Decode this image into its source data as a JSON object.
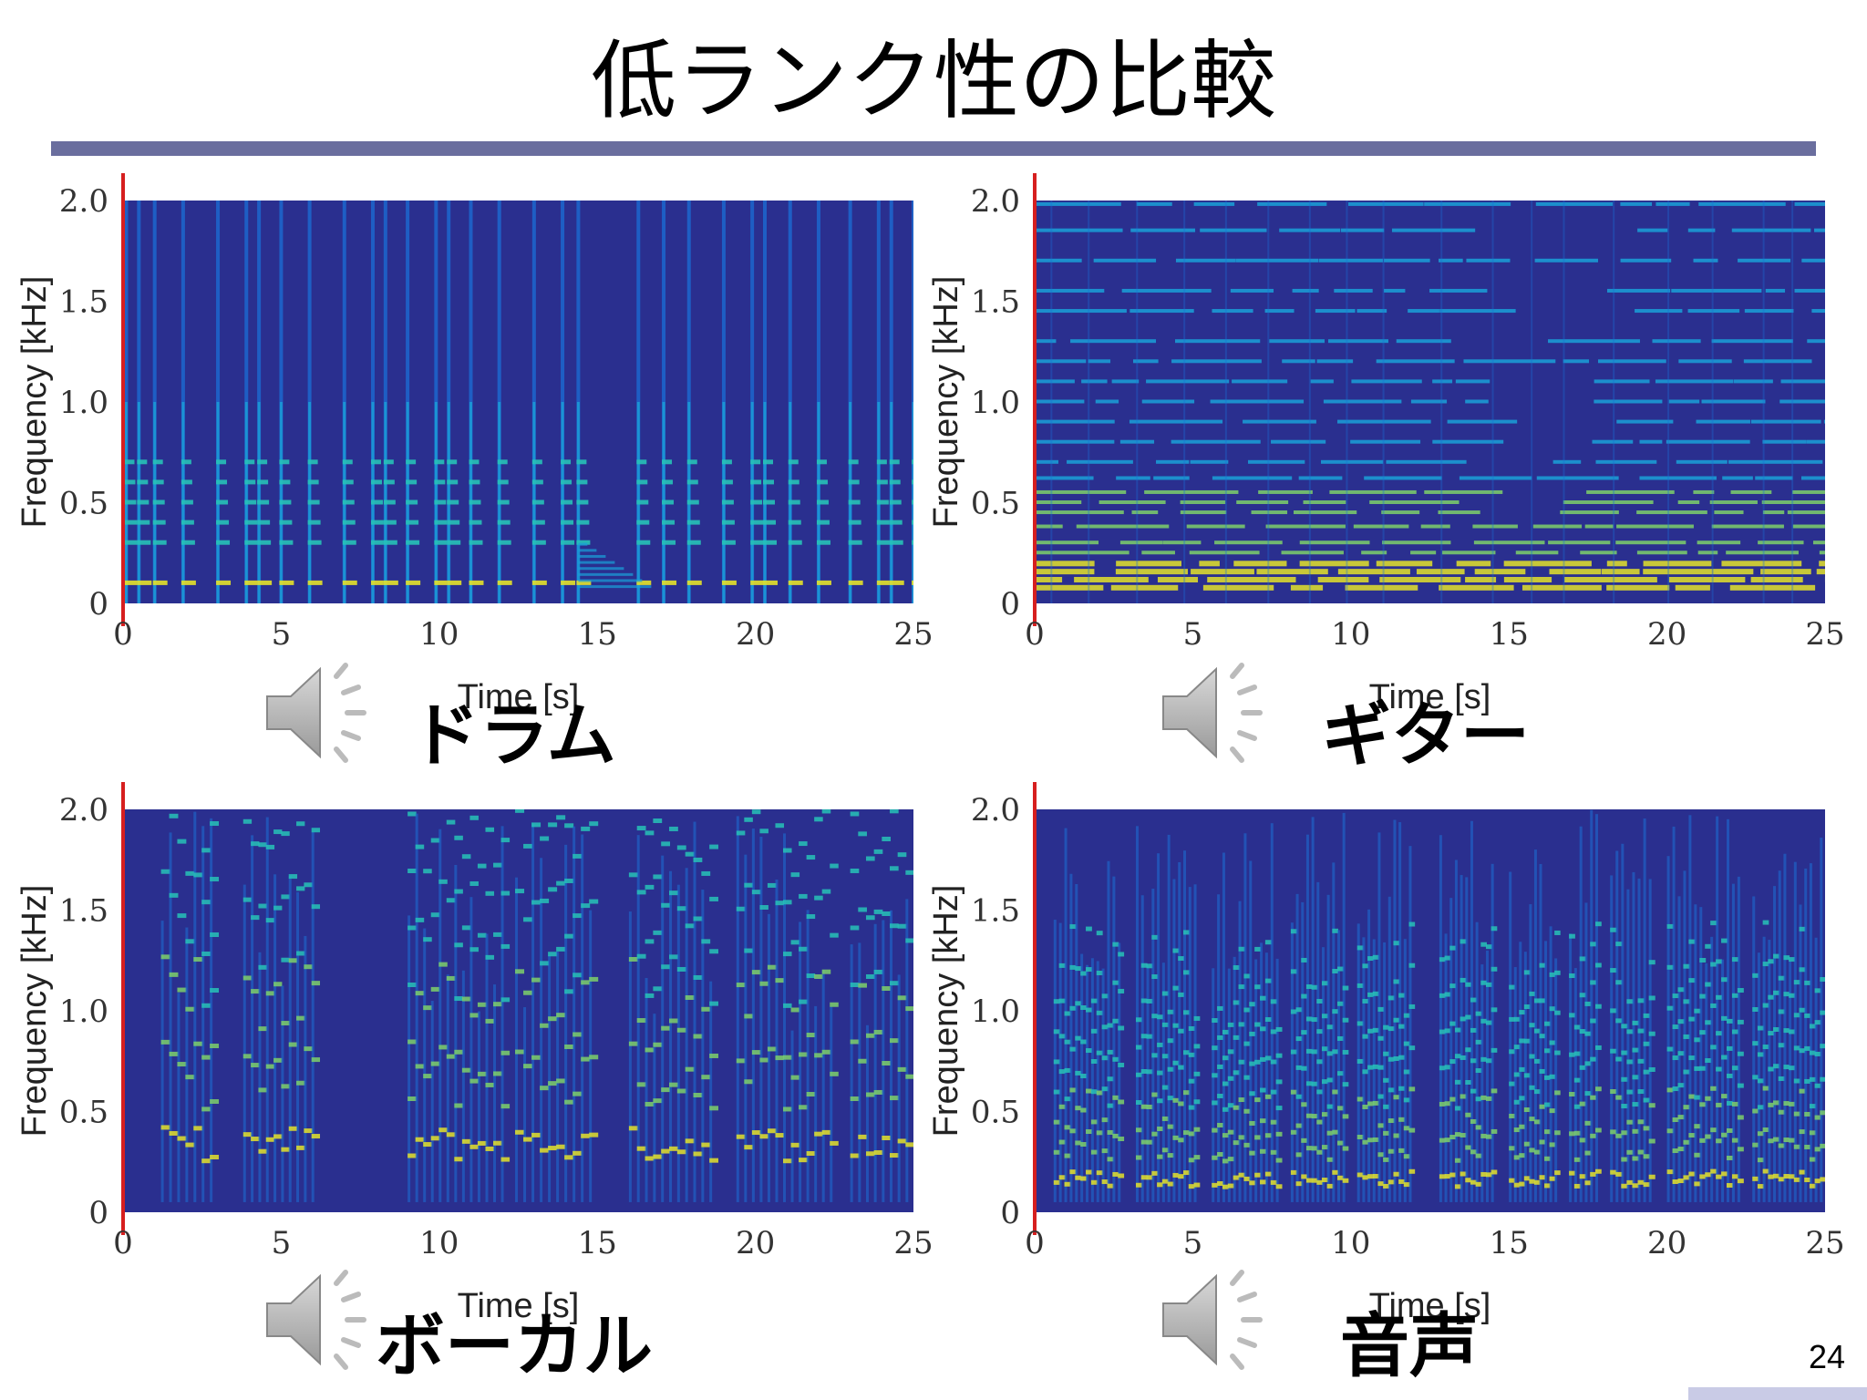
{
  "title": "低ランク性の比較",
  "page_number": "24",
  "colors": {
    "rule": "#6a6e9e",
    "background_dark": "#2a2f8f",
    "cursor": "#d61f1f"
  },
  "icons": [
    "speaker-icon"
  ],
  "chart_data": [
    {
      "type": "heatmap",
      "caption": "ドラム",
      "xlabel": "Time [s]",
      "ylabel": "Frequency [kHz]",
      "xlim": [
        0,
        25
      ],
      "ylim": [
        0,
        2.0
      ],
      "xticks": [
        "0",
        "5",
        "10",
        "15",
        "20",
        "25"
      ],
      "yticks": [
        "0",
        "0.5",
        "1.0",
        "1.5",
        "2.0"
      ],
      "cursor_time": 0,
      "colormap": "parula",
      "onset_times": [
        0.1,
        0.5,
        1.0,
        1.9,
        3.0,
        3.9,
        4.3,
        5.0,
        5.9,
        7.0,
        7.9,
        8.3,
        9.0,
        9.9,
        10.3,
        11.0,
        11.9,
        13.0,
        13.9,
        14.4,
        16.3,
        17.1,
        17.9,
        19.0,
        19.9,
        20.3,
        21.1,
        22.0,
        23.0,
        23.9,
        24.3,
        25.0
      ],
      "harmonics_khz": [
        0.1,
        0.3,
        0.4,
        0.5,
        0.6,
        0.7
      ]
    },
    {
      "type": "heatmap",
      "caption": "ギター",
      "xlabel": "Time [s]",
      "ylabel": "Frequency [kHz]",
      "xlim": [
        0,
        25
      ],
      "ylim": [
        0,
        2.0
      ],
      "xticks": [
        "0",
        "5",
        "10",
        "15",
        "20",
        "25"
      ],
      "yticks": [
        "0",
        "0.5",
        "1.0",
        "1.5",
        "2.0"
      ],
      "cursor_time": 0,
      "colormap": "parula",
      "harmonics_khz": [
        0.08,
        0.12,
        0.16,
        0.2,
        0.25,
        0.3,
        0.38,
        0.45,
        0.5,
        0.55,
        0.62,
        0.7,
        0.8,
        0.9,
        1.0,
        1.1,
        1.2,
        1.3,
        1.45,
        1.55,
        1.7,
        1.85,
        1.98
      ]
    },
    {
      "type": "heatmap",
      "caption": "ボーカル",
      "xlabel": "Time [s]",
      "ylabel": "Frequency [kHz]",
      "xlim": [
        0,
        25
      ],
      "ylim": [
        0,
        2.0
      ],
      "xticks": [
        "0",
        "5",
        "10",
        "15",
        "20",
        "25"
      ],
      "yticks": [
        "0",
        "0.5",
        "1.0",
        "1.5",
        "2.0"
      ],
      "cursor_time": 0,
      "colormap": "parula",
      "silence_interval": [
        6.3,
        8.9
      ],
      "phrases": [
        [
          1.2,
          3.0
        ],
        [
          3.8,
          6.2
        ],
        [
          9.0,
          12.2
        ],
        [
          12.4,
          15.0
        ],
        [
          16.0,
          18.8
        ],
        [
          19.4,
          22.6
        ],
        [
          23.0,
          25.0
        ]
      ]
    },
    {
      "type": "heatmap",
      "caption": "音声",
      "xlabel": "Time [s]",
      "ylabel": "Frequency [kHz]",
      "xlim": [
        0,
        25
      ],
      "ylim": [
        0,
        2.0
      ],
      "xticks": [
        "0",
        "5",
        "10",
        "15",
        "20",
        "25"
      ],
      "yticks": [
        "0",
        "0.5",
        "1.0",
        "1.5",
        "2.0"
      ],
      "cursor_time": 0,
      "colormap": "parula",
      "phrases": [
        [
          0.6,
          2.8
        ],
        [
          3.2,
          5.2
        ],
        [
          5.6,
          7.8
        ],
        [
          8.1,
          9.9
        ],
        [
          10.2,
          12.0
        ],
        [
          12.8,
          14.6
        ],
        [
          15.0,
          16.6
        ],
        [
          16.9,
          17.9
        ],
        [
          18.2,
          19.6
        ],
        [
          20.0,
          22.4
        ],
        [
          22.7,
          25.0
        ]
      ]
    }
  ]
}
